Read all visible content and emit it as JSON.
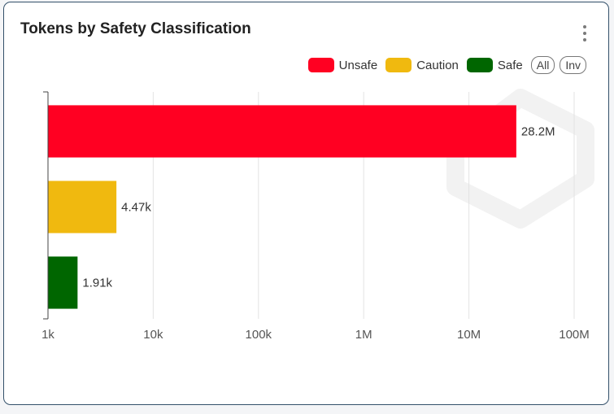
{
  "card": {
    "title": "Tokens by Safety Classification",
    "menu_icon": "more-vertical-icon",
    "watermark_icon": "shield-logo-watermark"
  },
  "legend": {
    "items": [
      {
        "label": "Unsafe",
        "color": "#ff0022"
      },
      {
        "label": "Caution",
        "color": "#f0b90f"
      },
      {
        "label": "Safe",
        "color": "#006600"
      }
    ],
    "all_label": "All",
    "inv_label": "Inv"
  },
  "chart_data": {
    "type": "bar",
    "orientation": "horizontal",
    "title": "Tokens by Safety Classification",
    "xscale": "log",
    "xlim": [
      1000,
      100000000
    ],
    "x_ticks": [
      1000,
      10000,
      100000,
      1000000,
      10000000,
      100000000
    ],
    "x_tick_labels": [
      "1k",
      "10k",
      "100k",
      "1M",
      "10M",
      "100M"
    ],
    "categories": [
      "Unsafe",
      "Caution",
      "Safe"
    ],
    "values": [
      28200000,
      4470,
      1910
    ],
    "value_labels": [
      "28.2M",
      "4.47k",
      "1.91k"
    ],
    "colors": [
      "#ff0022",
      "#f0b90f",
      "#006600"
    ],
    "grid": true,
    "legend_position": "top-right"
  }
}
